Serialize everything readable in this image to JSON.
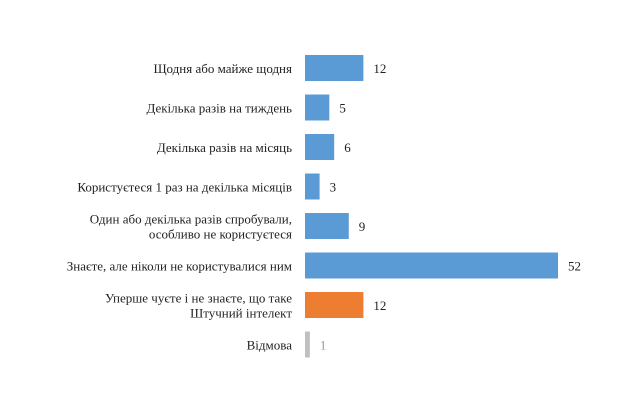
{
  "chart_data": {
    "type": "bar",
    "orientation": "horizontal",
    "title": "",
    "xlabel": "",
    "ylabel": "",
    "xlim": [
      0,
      52
    ],
    "grid": false,
    "legend": "none",
    "categories": [
      [
        "Щодня або майже щодня"
      ],
      [
        "Декілька разів на тиждень"
      ],
      [
        "Декілька разів на місяць"
      ],
      [
        "Користуєтеся 1 раз на декілька місяців"
      ],
      [
        "Один або декілька разів спробували,",
        "особливо не користуєтеся"
      ],
      [
        "Знаєте, але ніколи не користувалися ним"
      ],
      [
        "Уперше чуєте і не знаєте, що таке",
        "Штучний інтелект"
      ],
      [
        "Відмова"
      ]
    ],
    "values": [
      12,
      5,
      6,
      3,
      9,
      52,
      12,
      1
    ],
    "value_labels": [
      "12",
      "5",
      "6",
      "3",
      "9",
      "52",
      "12",
      "1"
    ],
    "bar_colors": [
      "#5b9bd5",
      "#5b9bd5",
      "#5b9bd5",
      "#5b9bd5",
      "#5b9bd5",
      "#5b9bd5",
      "#ed7d31",
      "#bfbfbf"
    ],
    "label_colors": [
      "#222222",
      "#222222",
      "#222222",
      "#222222",
      "#222222",
      "#222222",
      "#222222",
      "#999999"
    ]
  }
}
